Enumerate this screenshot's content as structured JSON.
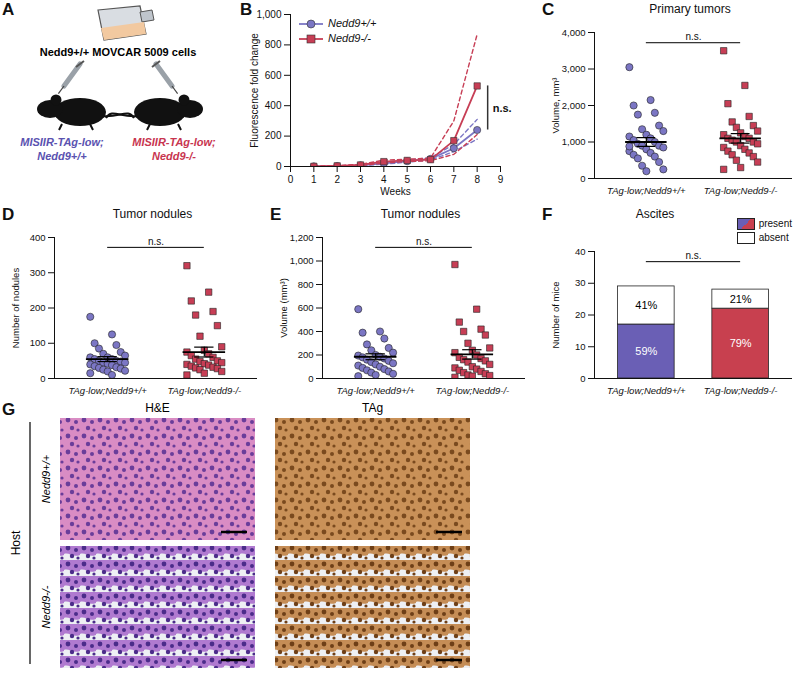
{
  "diagram": {
    "panel": "A",
    "cells": "Nedd9+/+ MOVCAR 5009 cells",
    "hosts": [
      {
        "lines": [
          "MISIIR-TAg-low;",
          "Nedd9+/+"
        ],
        "color": "#5a52b0"
      },
      {
        "lines": [
          "MISIIR-TAg-low;",
          "Nedd9-/-"
        ],
        "color": "#c8354f"
      }
    ]
  },
  "chart_data": [
    {
      "panel": "B",
      "type": "line",
      "x_label": "Weeks",
      "y_label": "Fluorescence fold change",
      "x": [
        1,
        2,
        3,
        4,
        5,
        6,
        7,
        8
      ],
      "xlim": [
        0,
        9
      ],
      "xticks": [
        0,
        1,
        2,
        3,
        4,
        5,
        6,
        7,
        8,
        9
      ],
      "ylim": [
        0,
        1000
      ],
      "yticks": [
        0,
        200,
        400,
        600,
        800,
        1000
      ],
      "legend": "top-left",
      "significance": "n.s.",
      "series": [
        {
          "name": "Nedd9+/+",
          "color": "#7b76c4",
          "marker": "circle",
          "line_style": "solid",
          "values": [
            1,
            3,
            8,
            20,
            35,
            50,
            120,
            240
          ],
          "upper": [
            1,
            4,
            11,
            26,
            42,
            58,
            145,
            310
          ],
          "lower": [
            1,
            2,
            6,
            15,
            29,
            43,
            98,
            180
          ]
        },
        {
          "name": "Nedd9-/-",
          "color": "#c73e55",
          "marker": "square",
          "line_style": "solid",
          "values": [
            1,
            4,
            10,
            32,
            40,
            45,
            170,
            530
          ],
          "upper": [
            1,
            5,
            14,
            42,
            48,
            55,
            300,
            870
          ],
          "lower": [
            1,
            3,
            7,
            22,
            33,
            38,
            80,
            210
          ]
        }
      ]
    },
    {
      "panel": "C",
      "type": "scatter",
      "title": "Primary tumors",
      "y_label": "Volume, mm³",
      "categories": [
        "TAg-low;Nedd9+/+",
        "TAg-low;Nedd9-/-"
      ],
      "ylim": [
        0,
        4000
      ],
      "yticks": [
        0,
        1000,
        2000,
        3000,
        4000
      ],
      "significance": "n.s.",
      "groups": [
        {
          "color": "#7b76c4",
          "marker": "circle",
          "mean": 1000,
          "sem": 120,
          "values": [
            3050,
            2150,
            2000,
            1800,
            1750,
            1450,
            1350,
            1300,
            1200,
            1150,
            1100,
            1050,
            1000,
            950,
            900,
            900,
            850,
            800,
            750,
            700,
            650,
            600,
            550,
            450,
            350,
            250,
            200,
            880
          ]
        },
        {
          "color": "#c73e55",
          "marker": "square",
          "mean": 1100,
          "sem": 130,
          "values": [
            3500,
            2550,
            2050,
            1700,
            1550,
            1450,
            1400,
            1300,
            1250,
            1200,
            1150,
            1100,
            1100,
            1050,
            1000,
            1000,
            950,
            900,
            850,
            800,
            750,
            700,
            650,
            600,
            500,
            450,
            300,
            250
          ]
        }
      ]
    },
    {
      "panel": "D",
      "type": "scatter",
      "title": "Tumor nodules",
      "y_label": "Number of nodules",
      "categories": [
        "TAg-low;Nedd9+/+",
        "TAg-low;Nedd9-/-"
      ],
      "ylim": [
        0,
        400
      ],
      "yticks": [
        0,
        100,
        200,
        300,
        400
      ],
      "significance": "n.s.",
      "groups": [
        {
          "color": "#7b76c4",
          "marker": "circle",
          "mean": 55,
          "sem": 7,
          "values": [
            175,
            125,
            100,
            95,
            85,
            75,
            70,
            65,
            60,
            60,
            55,
            55,
            50,
            50,
            48,
            45,
            45,
            42,
            40,
            38,
            35,
            32,
            30,
            28,
            25,
            22,
            20,
            15,
            10
          ]
        },
        {
          "color": "#c73e55",
          "marker": "square",
          "mean": 75,
          "sem": 14,
          "values": [
            320,
            245,
            220,
            190,
            180,
            150,
            120,
            90,
            80,
            75,
            70,
            65,
            60,
            55,
            50,
            48,
            45,
            42,
            40,
            38,
            35,
            32,
            30,
            28,
            25,
            20,
            15,
            10
          ]
        }
      ]
    },
    {
      "panel": "E",
      "type": "scatter",
      "title": "Tumor nodules",
      "y_label": "Volume (mm³)",
      "categories": [
        "TAg-low;Nedd9+/+",
        "TAg-low;Nedd9-/-"
      ],
      "ylim": [
        0,
        1200
      ],
      "yticks": [
        0,
        200,
        400,
        600,
        800,
        1000,
        1200
      ],
      "significance": "n.s.",
      "groups": [
        {
          "color": "#7b76c4",
          "marker": "circle",
          "mean": 185,
          "sem": 25,
          "values": [
            590,
            400,
            390,
            340,
            290,
            260,
            240,
            220,
            200,
            195,
            185,
            180,
            170,
            160,
            150,
            140,
            130,
            120,
            110,
            100,
            90,
            80,
            70,
            60,
            50,
            40,
            30,
            20
          ]
        },
        {
          "color": "#c73e55",
          "marker": "square",
          "mean": 205,
          "sem": 40,
          "values": [
            970,
            590,
            480,
            420,
            400,
            370,
            300,
            260,
            240,
            220,
            200,
            180,
            170,
            160,
            150,
            140,
            120,
            100,
            90,
            80,
            70,
            60,
            50,
            40,
            30,
            25,
            20,
            10
          ]
        }
      ]
    },
    {
      "panel": "F",
      "type": "bar",
      "stacked": true,
      "title": "Ascites",
      "y_label": "Number of mice",
      "categories": [
        "TAg-low;Nedd9+/+",
        "TAg-low;Nedd9-/-"
      ],
      "ylim": [
        0,
        40
      ],
      "yticks": [
        0,
        10,
        20,
        30,
        40
      ],
      "legend": "top-right",
      "significance": "n.s.",
      "series": [
        {
          "name": "present",
          "colors": [
            "#6a5fb5",
            "#c8404f"
          ],
          "values": [
            17,
            22
          ],
          "labels": [
            "59%",
            "79%"
          ]
        },
        {
          "name": "absent",
          "color": "#ffffff",
          "values": [
            12,
            6
          ],
          "labels": [
            "41%",
            "21%"
          ]
        }
      ]
    }
  ],
  "images": {
    "panel": "G",
    "columns": [
      "H&E",
      "TAg"
    ],
    "group_label": "Host",
    "rows": [
      "Nedd9+/+",
      "Nedd9-/-"
    ]
  }
}
